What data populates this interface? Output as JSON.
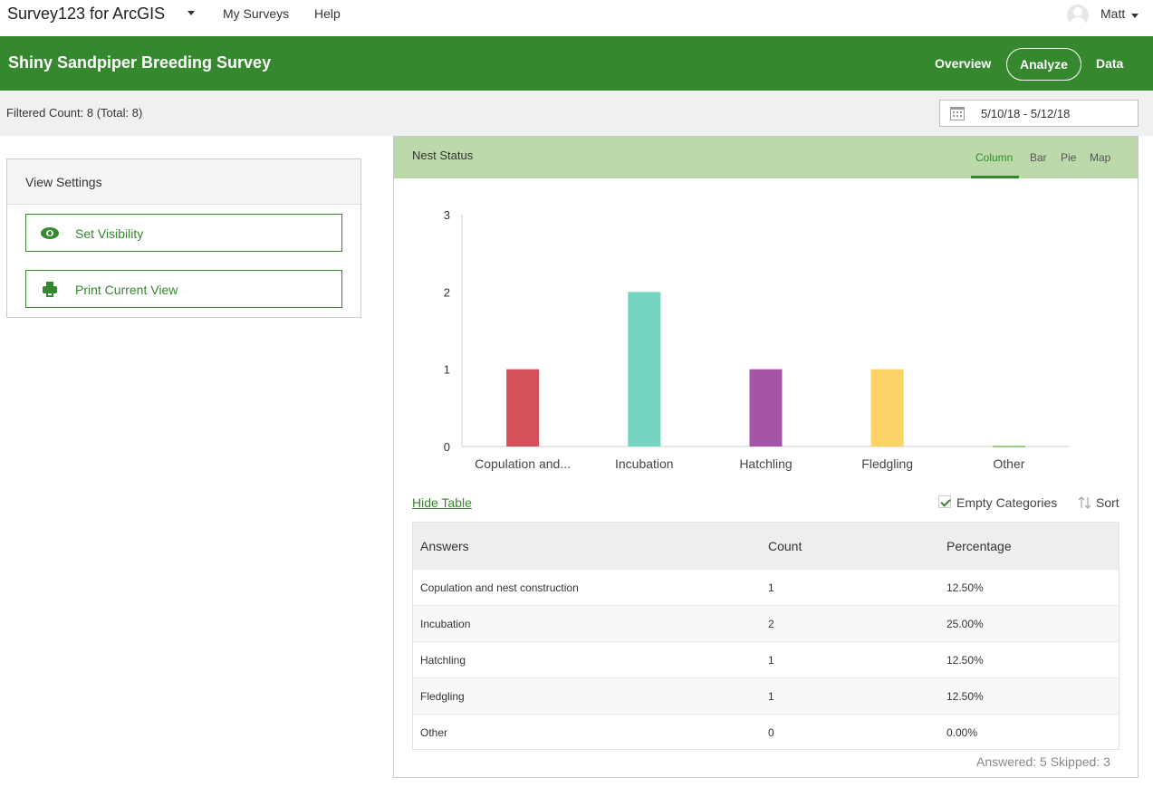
{
  "topnav": {
    "app_title": "Survey123 for ArcGIS",
    "links": [
      "My Surveys",
      "Help"
    ],
    "user_name": "Matt"
  },
  "header": {
    "survey_title": "Shiny Sandpiper Breeding Survey",
    "tabs": [
      "Overview",
      "Analyze",
      "Data"
    ],
    "active_tab": "Analyze",
    "brand_color": "#35882e"
  },
  "filter": {
    "count_text": "Filtered Count: 8 (Total: 8)",
    "date_range": "5/10/18 - 5/12/18"
  },
  "view_settings": {
    "title": "View Settings",
    "buttons": [
      "Set Visibility",
      "Print Current View"
    ]
  },
  "panel": {
    "title": "Nest Status",
    "chart_tabs": [
      "Column",
      "Bar",
      "Pie",
      "Map"
    ],
    "active_chart_tab": "Column",
    "hide_table": "Hide Table",
    "empty_categories": "Empty Categories",
    "sort": "Sort",
    "footer": "Answered: 5  Skipped: 3"
  },
  "chart_data": {
    "type": "bar",
    "title": "Nest Status",
    "categories": [
      "Copulation and...",
      "Incubation",
      "Hatchling",
      "Fledgling",
      "Other"
    ],
    "values": [
      1,
      2,
      1,
      1,
      0
    ],
    "colors": [
      "#d5505a",
      "#72d6c1",
      "#a455a6",
      "#fdd266",
      "#9ccc81"
    ],
    "yticks": [
      0,
      1,
      2,
      3
    ],
    "ylim": [
      0,
      3
    ],
    "xlabel": "",
    "ylabel": "",
    "grid": false
  },
  "table": {
    "headers": [
      "Answers",
      "Count",
      "Percentage"
    ],
    "rows": [
      [
        "Copulation and nest construction",
        "1",
        "12.50%"
      ],
      [
        "Incubation",
        "2",
        "25.00%"
      ],
      [
        "Hatchling",
        "1",
        "12.50%"
      ],
      [
        "Fledgling",
        "1",
        "12.50%"
      ],
      [
        "Other",
        "0",
        "0.00%"
      ]
    ]
  }
}
